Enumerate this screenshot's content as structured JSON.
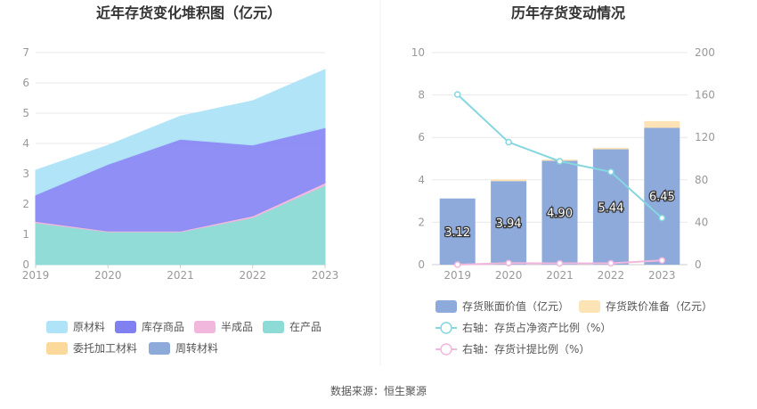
{
  "source": "数据来源：恒生聚源",
  "chart_data": [
    {
      "type": "area",
      "title": "近年存货变化堆积图（亿元）",
      "categories": [
        "2019",
        "2020",
        "2021",
        "2022",
        "2023"
      ],
      "ylim": [
        0,
        7
      ],
      "yticks": [
        "0",
        "1",
        "2",
        "3",
        "4",
        "5",
        "6",
        "7"
      ],
      "stacked": true,
      "series": [
        {
          "name": "在产品",
          "color": "#8ddbd6",
          "values": [
            1.38,
            1.08,
            1.08,
            1.55,
            2.62
          ]
        },
        {
          "name": "半成品",
          "color": "#f2b7dd",
          "values": [
            0.05,
            0.03,
            0.03,
            0.06,
            0.08
          ]
        },
        {
          "name": "库存商品",
          "color": "#8a8af5",
          "values": [
            0.87,
            2.2,
            3.03,
            2.34,
            1.82
          ]
        },
        {
          "name": "原材料",
          "color": "#aee3f8",
          "values": [
            0.82,
            0.63,
            0.76,
            1.46,
            1.92
          ]
        }
      ],
      "legend": [
        {
          "name": "原材料",
          "color": "#aee3f8"
        },
        {
          "name": "库存商品",
          "color": "#8080f0"
        },
        {
          "name": "半成品",
          "color": "#f2b7dd"
        },
        {
          "name": "在产品",
          "color": "#8ddbd6"
        },
        {
          "name": "委托加工材料",
          "color": "#fbd99a"
        },
        {
          "name": "周转材料",
          "color": "#8eaadb"
        }
      ],
      "legend_position": "bottom"
    },
    {
      "type": "bar",
      "title": "历年存货变动情况",
      "categories": [
        "2019",
        "2020",
        "2021",
        "2022",
        "2023"
      ],
      "ylim": [
        0,
        10
      ],
      "yticks": [
        "0",
        "2",
        "4",
        "6",
        "8",
        "10"
      ],
      "y2lim": [
        0,
        200
      ],
      "y2ticks": [
        "0",
        "40",
        "80",
        "120",
        "160",
        "200"
      ],
      "bars": {
        "book_value": {
          "name": "存货账面价值（亿元）",
          "color": "#8eaadb",
          "values": [
            3.12,
            3.94,
            4.9,
            5.44,
            6.45
          ],
          "labels": [
            "3.12",
            "3.94",
            "4.90",
            "5.44",
            "6.45"
          ]
        },
        "impairment": {
          "name": "存货跌价准备（亿元）",
          "color": "#fde3b5",
          "values": [
            0.0,
            0.08,
            0.06,
            0.07,
            0.32
          ]
        }
      },
      "lines": [
        {
          "name": "右轴：存货占净资产比例（%）",
          "color": "#86d6df",
          "values": [
            160.5,
            115.5,
            97.5,
            87.5,
            44.0
          ]
        },
        {
          "name": "右轴：存货计提比例（%）",
          "color": "#f2b7dd",
          "values": [
            0.0,
            1.5,
            1.2,
            1.3,
            4.0
          ]
        }
      ],
      "legend_position": "bottom"
    }
  ]
}
